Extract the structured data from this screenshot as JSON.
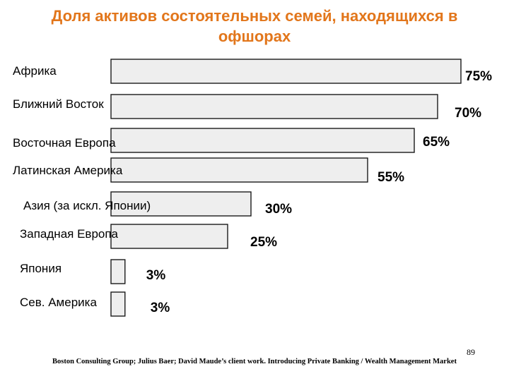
{
  "title_line1": "Доля активов состоятельных семей, находящихся в",
  "title_line2": "офшорах",
  "page_number": "89",
  "source": "Boston Consulting Group; Julius Baer; David Maude’s client work. Introducing Private Banking / Wealth Management Market",
  "colors": {
    "title": "#e2761b",
    "bar_fill": "#eeeeee",
    "bar_stroke": "#1a1a1a"
  },
  "chart_data": {
    "type": "bar",
    "orientation": "horizontal",
    "title": "Доля активов состоятельных семей, находящихся в офшорах",
    "categories": [
      "Африка",
      "Ближний Восток",
      "Восточная Европа",
      "Латинская Америка",
      "Азия (за искл. Японии)",
      "Западная Европа",
      "Япония",
      "Сев. Америка"
    ],
    "values": [
      75,
      70,
      65,
      55,
      30,
      25,
      3,
      3
    ],
    "value_labels": [
      "75%",
      "70%",
      "65%",
      "55%",
      "30%",
      "25%",
      "3%",
      "3%"
    ],
    "unit": "%",
    "xlabel": "",
    "ylabel": "",
    "grid": false,
    "legend": "none"
  }
}
